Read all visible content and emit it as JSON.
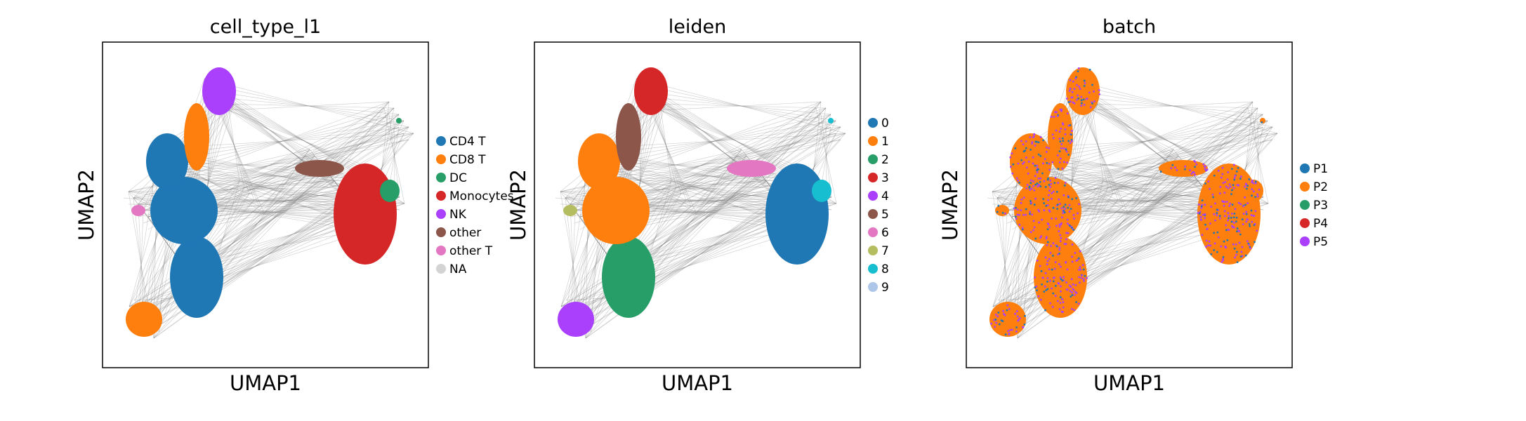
{
  "chart_data": [
    {
      "type": "scatter",
      "title": "cell_type_l1",
      "xlabel": "UMAP1",
      "ylabel": "UMAP2",
      "grid": false,
      "legend_placement": "right",
      "legend": [
        {
          "label": "CD4 T",
          "color": "#1f77b4"
        },
        {
          "label": "CD8 T",
          "color": "#ff7f0e"
        },
        {
          "label": "DC",
          "color": "#279e68"
        },
        {
          "label": "Monocytes",
          "color": "#d62728"
        },
        {
          "label": "NK",
          "color": "#aa40fc"
        },
        {
          "label": "other",
          "color": "#8c564b"
        },
        {
          "label": "other T",
          "color": "#e377c2"
        },
        {
          "label": "NA",
          "color": "#d3d3d3"
        }
      ]
    },
    {
      "type": "scatter",
      "title": "leiden",
      "xlabel": "UMAP1",
      "ylabel": "UMAP2",
      "grid": false,
      "legend_placement": "right",
      "legend": [
        {
          "label": "0",
          "color": "#1f77b4"
        },
        {
          "label": "1",
          "color": "#ff7f0e"
        },
        {
          "label": "2",
          "color": "#279e68"
        },
        {
          "label": "3",
          "color": "#d62728"
        },
        {
          "label": "4",
          "color": "#aa40fc"
        },
        {
          "label": "5",
          "color": "#8c564b"
        },
        {
          "label": "6",
          "color": "#e377c2"
        },
        {
          "label": "7",
          "color": "#b5bd61"
        },
        {
          "label": "8",
          "color": "#17becf"
        },
        {
          "label": "9",
          "color": "#aec7e8"
        }
      ]
    },
    {
      "type": "scatter",
      "title": "batch",
      "xlabel": "UMAP1",
      "ylabel": "UMAP2",
      "grid": false,
      "legend_placement": "right",
      "legend": [
        {
          "label": "P1",
          "color": "#1f77b4"
        },
        {
          "label": "P2",
          "color": "#ff7f0e"
        },
        {
          "label": "P3",
          "color": "#279e68"
        },
        {
          "label": "P4",
          "color": "#d62728"
        },
        {
          "label": "P5",
          "color": "#aa40fc"
        }
      ]
    }
  ]
}
